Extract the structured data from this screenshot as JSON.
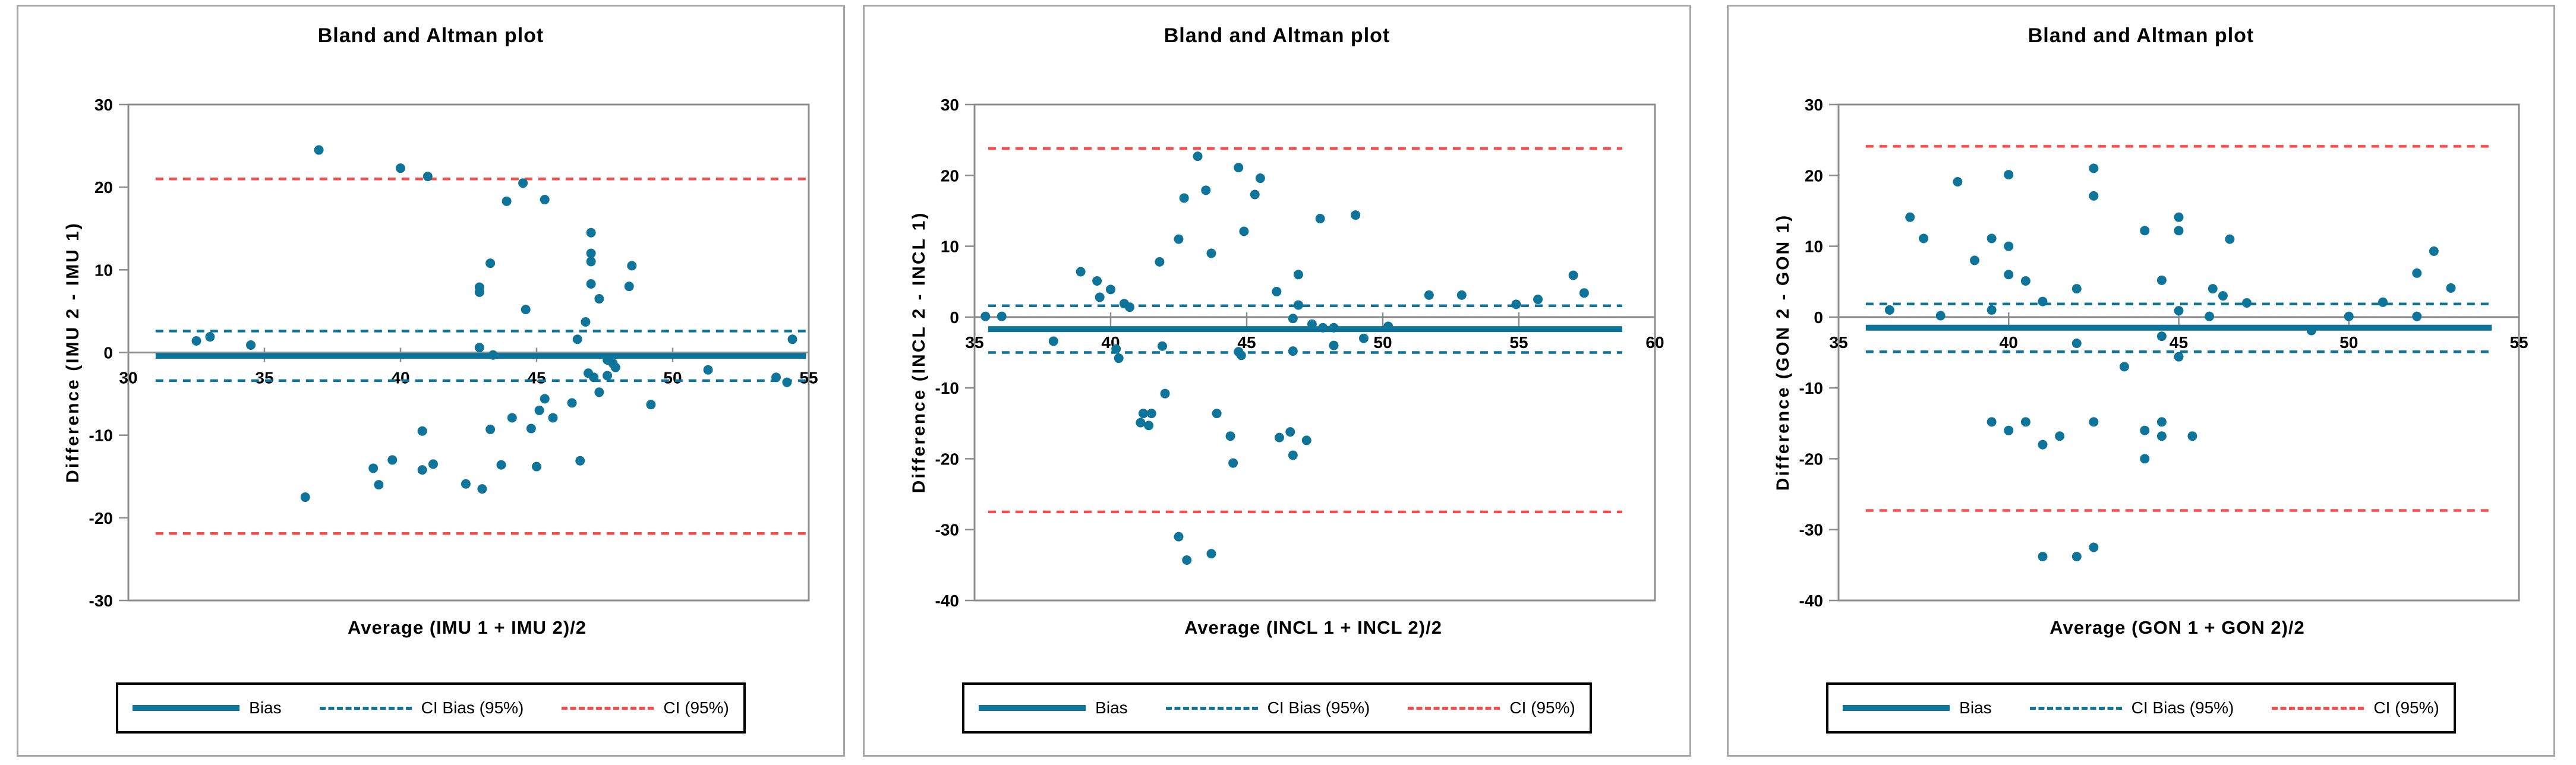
{
  "page": {
    "background": "#ffffff"
  },
  "colors": {
    "teal": "#0e7499",
    "red": "#fb4a4a",
    "axis": "#8c8c8c",
    "panel_border": "#a6a6a6",
    "legend_border": "#000000",
    "text": "#000000"
  },
  "legend": {
    "items": [
      {
        "label": "Bias",
        "style": "solid",
        "color_key": "teal"
      },
      {
        "label": "CI Bias (95%)",
        "style": "dashed",
        "color_key": "teal"
      },
      {
        "label": "CI (95%)",
        "style": "dashed",
        "color_key": "red"
      }
    ]
  },
  "chart_data": [
    {
      "type": "scatter",
      "title": "Bland and Altman plot",
      "xlabel": "Average (IMU 1 + IMU 2)/2",
      "ylabel": "Difference (IMU 2 - IMU 1)",
      "xlim": [
        30,
        55
      ],
      "ylim": [
        -30,
        30
      ],
      "x_ticks": [
        30,
        35,
        40,
        45,
        50,
        55
      ],
      "y_ticks": [
        30,
        20,
        10,
        0,
        -10,
        -20,
        -30
      ],
      "grid": false,
      "legend_position": "bottom",
      "bias": -0.4,
      "ci_bias_upper": 2.6,
      "ci_bias_lower": -3.4,
      "ci_upper": 21.0,
      "ci_lower": -21.9,
      "line_span": [
        31.0,
        54.9
      ],
      "points": [
        [
          32.5,
          1.4
        ],
        [
          33,
          1.9
        ],
        [
          34.5,
          0.9
        ],
        [
          36.5,
          -17.5
        ],
        [
          37,
          24.5
        ],
        [
          39,
          -14
        ],
        [
          39.2,
          -16
        ],
        [
          39.7,
          -13
        ],
        [
          40,
          22.3
        ],
        [
          40.8,
          -9.5
        ],
        [
          40.8,
          -14.2
        ],
        [
          41,
          21.3
        ],
        [
          41.2,
          -13.5
        ],
        [
          42.4,
          -15.9
        ],
        [
          42.9,
          7.9
        ],
        [
          42.9,
          7.3
        ],
        [
          42.9,
          0.6
        ],
        [
          43,
          -16.5
        ],
        [
          43.3,
          10.8
        ],
        [
          43.3,
          -9.3
        ],
        [
          43.4,
          -0.3
        ],
        [
          43.7,
          -13.6
        ],
        [
          43.9,
          18.3
        ],
        [
          44.1,
          -7.9
        ],
        [
          44.5,
          20.5
        ],
        [
          44.6,
          5.2
        ],
        [
          44.8,
          -9.2
        ],
        [
          45,
          -13.8
        ],
        [
          45.1,
          -7
        ],
        [
          45.3,
          18.5
        ],
        [
          45.3,
          -5.6
        ],
        [
          45.6,
          -7.9
        ],
        [
          46.3,
          -6.1
        ],
        [
          46.5,
          1.6
        ],
        [
          46.6,
          -13.1
        ],
        [
          46.8,
          3.7
        ],
        [
          46.9,
          -2.5
        ],
        [
          47,
          14.5
        ],
        [
          47,
          12
        ],
        [
          47,
          11
        ],
        [
          47,
          8.3
        ],
        [
          47.1,
          -3
        ],
        [
          47.3,
          6.5
        ],
        [
          47.3,
          -4.8
        ],
        [
          47.6,
          -2.8
        ],
        [
          47.6,
          -0.9
        ],
        [
          47.8,
          -1.3
        ],
        [
          47.9,
          -1.8
        ],
        [
          48.4,
          8
        ],
        [
          48.5,
          10.5
        ],
        [
          49.2,
          -6.3
        ],
        [
          51.3,
          -2.1
        ],
        [
          53.8,
          -3
        ],
        [
          54.2,
          -3.6
        ],
        [
          54.4,
          1.6
        ]
      ]
    },
    {
      "type": "scatter",
      "title": "Bland and Altman plot",
      "xlabel": "Average (INCL 1 + INCL 2)/2",
      "ylabel": "Difference (INCL 2 - INCL 1)",
      "xlim": [
        35,
        60
      ],
      "ylim": [
        -40,
        30
      ],
      "x_ticks": [
        35,
        40,
        45,
        50,
        55,
        60
      ],
      "y_ticks": [
        30,
        20,
        10,
        0,
        -10,
        -20,
        -30,
        -40
      ],
      "grid": false,
      "legend_position": "bottom",
      "bias": -1.7,
      "ci_bias_upper": 1.6,
      "ci_bias_lower": -5.0,
      "ci_upper": 23.8,
      "ci_lower": -27.5,
      "line_span": [
        35.5,
        58.8
      ],
      "points": [
        [
          35.4,
          0.1
        ],
        [
          36,
          0.1
        ],
        [
          37.9,
          -3.4
        ],
        [
          38.9,
          6.4
        ],
        [
          39.5,
          5.1
        ],
        [
          39.6,
          2.8
        ],
        [
          40,
          3.9
        ],
        [
          40.2,
          -4.5
        ],
        [
          40.3,
          -5.8
        ],
        [
          40.5,
          1.9
        ],
        [
          40.7,
          1.4
        ],
        [
          41.1,
          -14.9
        ],
        [
          41.2,
          -13.6
        ],
        [
          41.4,
          -15.3
        ],
        [
          41.5,
          -13.6
        ],
        [
          41.8,
          7.8
        ],
        [
          41.9,
          -4.1
        ],
        [
          42,
          -10.8
        ],
        [
          42.5,
          11
        ],
        [
          42.5,
          -31
        ],
        [
          42.7,
          16.8
        ],
        [
          42.8,
          -34.3
        ],
        [
          43.2,
          22.7
        ],
        [
          43.5,
          17.9
        ],
        [
          43.7,
          9
        ],
        [
          43.7,
          -33.4
        ],
        [
          43.9,
          -13.6
        ],
        [
          44.4,
          -16.8
        ],
        [
          44.5,
          -20.6
        ],
        [
          44.7,
          21.1
        ],
        [
          44.7,
          -4.9
        ],
        [
          44.8,
          -5.4
        ],
        [
          44.9,
          12.1
        ],
        [
          45.3,
          17.3
        ],
        [
          45.5,
          19.6
        ],
        [
          46.1,
          3.6
        ],
        [
          46.2,
          -17
        ],
        [
          46.6,
          -16.2
        ],
        [
          46.7,
          -19.5
        ],
        [
          46.7,
          -0.2
        ],
        [
          46.7,
          -4.8
        ],
        [
          46.9,
          6
        ],
        [
          46.9,
          1.7
        ],
        [
          47.2,
          -17.4
        ],
        [
          47.4,
          -1
        ],
        [
          47.7,
          13.9
        ],
        [
          47.8,
          -1.5
        ],
        [
          48.2,
          -1.5
        ],
        [
          48.2,
          -4
        ],
        [
          49,
          14.4
        ],
        [
          49.3,
          -3
        ],
        [
          50.2,
          -1.3
        ],
        [
          51.7,
          3.1
        ],
        [
          52.9,
          3.1
        ],
        [
          54.9,
          1.8
        ],
        [
          55.7,
          2.5
        ],
        [
          57,
          5.9
        ],
        [
          57.4,
          3.4
        ]
      ]
    },
    {
      "type": "scatter",
      "title": "Bland and Altman plot",
      "xlabel": "Average (GON 1 + GON 2)/2",
      "ylabel": "Difference (GON 2 - GON 1)",
      "xlim": [
        35,
        55
      ],
      "ylim": [
        -40,
        30
      ],
      "x_ticks": [
        35,
        40,
        45,
        50,
        55
      ],
      "y_ticks": [
        30,
        20,
        10,
        0,
        -10,
        -20,
        -30,
        -40
      ],
      "grid": false,
      "legend_position": "bottom",
      "bias": -1.5,
      "ci_bias_upper": 1.85,
      "ci_bias_lower": -4.9,
      "ci_upper": 24.1,
      "ci_lower": -27.3,
      "line_span": [
        35.8,
        54.2
      ],
      "points": [
        [
          36.5,
          1
        ],
        [
          37.1,
          14.1
        ],
        [
          37.5,
          11.1
        ],
        [
          38,
          0.2
        ],
        [
          38.5,
          19.1
        ],
        [
          39,
          8
        ],
        [
          39.5,
          11.1
        ],
        [
          39.5,
          1
        ],
        [
          39.5,
          -14.8
        ],
        [
          40,
          20.1
        ],
        [
          40,
          10
        ],
        [
          40,
          6
        ],
        [
          40,
          -16
        ],
        [
          40.5,
          5.1
        ],
        [
          40.5,
          -14.8
        ],
        [
          41,
          2.2
        ],
        [
          41,
          -18
        ],
        [
          41,
          -33.8
        ],
        [
          41.5,
          -16.8
        ],
        [
          42,
          4
        ],
        [
          42,
          -3.7
        ],
        [
          42,
          -33.8
        ],
        [
          42.5,
          21
        ],
        [
          42.5,
          17.1
        ],
        [
          42.5,
          -14.8
        ],
        [
          42.5,
          -32.5
        ],
        [
          43.4,
          -7
        ],
        [
          44,
          12.2
        ],
        [
          44,
          -16
        ],
        [
          44,
          -20
        ],
        [
          44.5,
          5.2
        ],
        [
          44.5,
          -2.7
        ],
        [
          44.5,
          -14.8
        ],
        [
          44.5,
          -16.8
        ],
        [
          45,
          14.1
        ],
        [
          45,
          12.2
        ],
        [
          45,
          0.9
        ],
        [
          45,
          -5.6
        ],
        [
          45.4,
          -16.8
        ],
        [
          45.9,
          0.1
        ],
        [
          46,
          4
        ],
        [
          46.3,
          3
        ],
        [
          46.5,
          11
        ],
        [
          47,
          2
        ],
        [
          48.9,
          -1.9
        ],
        [
          50,
          0.1
        ],
        [
          51,
          2.1
        ],
        [
          52,
          6.2
        ],
        [
          52,
          0.1
        ],
        [
          52.5,
          9.3
        ],
        [
          53,
          4.1
        ]
      ]
    }
  ]
}
